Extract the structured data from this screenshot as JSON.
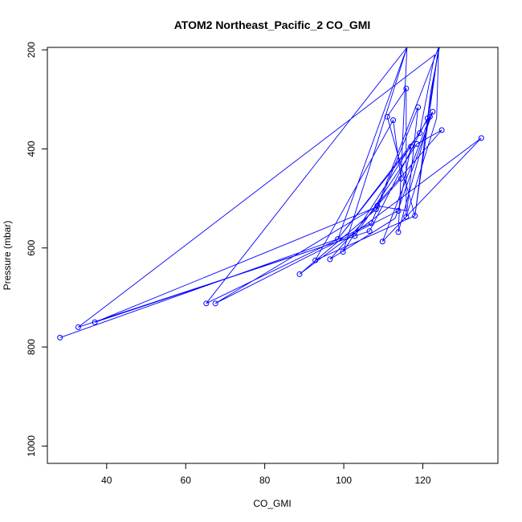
{
  "chart_data": {
    "type": "scatter",
    "title": "ATOM2 Northeast_Pacific_2 CO_GMI",
    "xlabel": "CO_GMI",
    "ylabel": "Pressure (mbar)",
    "xlim": [
      25,
      139
    ],
    "ylim": [
      1035,
      195
    ],
    "y_reversed": true,
    "x_ticks": [
      40,
      60,
      80,
      100,
      120
    ],
    "y_ticks": [
      200,
      400,
      600,
      800,
      1000
    ],
    "grid": false,
    "legend": "none",
    "colors": {
      "series": "#0000ff",
      "axis": "#000000"
    },
    "points": [
      {
        "x": 28.2,
        "y": 781
      },
      {
        "x": 32.8,
        "y": 760
      },
      {
        "x": 37.0,
        "y": 750
      },
      {
        "x": 65.2,
        "y": 712
      },
      {
        "x": 67.5,
        "y": 712
      },
      {
        "x": 88.8,
        "y": 653
      },
      {
        "x": 92.8,
        "y": 625
      },
      {
        "x": 96.5,
        "y": 623
      },
      {
        "x": 99.8,
        "y": 608
      },
      {
        "x": 98.5,
        "y": 582
      },
      {
        "x": 102.8,
        "y": 576
      },
      {
        "x": 106.5,
        "y": 566
      },
      {
        "x": 109.8,
        "y": 587
      },
      {
        "x": 113.8,
        "y": 568
      },
      {
        "x": 107.0,
        "y": 550
      },
      {
        "x": 108.2,
        "y": 522
      },
      {
        "x": 108.5,
        "y": 515
      },
      {
        "x": 113.8,
        "y": 525
      },
      {
        "x": 115.8,
        "y": 537
      },
      {
        "x": 118.0,
        "y": 535
      },
      {
        "x": 114.5,
        "y": 460
      },
      {
        "x": 117.0,
        "y": 395
      },
      {
        "x": 118.5,
        "y": 390
      },
      {
        "x": 119.2,
        "y": 368
      },
      {
        "x": 111.0,
        "y": 335
      },
      {
        "x": 112.5,
        "y": 342
      },
      {
        "x": 115.8,
        "y": 278
      },
      {
        "x": 118.8,
        "y": 316
      },
      {
        "x": 121.2,
        "y": 338
      },
      {
        "x": 121.8,
        "y": 335
      },
      {
        "x": 122.5,
        "y": 325
      },
      {
        "x": 124.8,
        "y": 362
      },
      {
        "x": 134.8,
        "y": 378
      }
    ],
    "line_x": [
      28.2,
      98.5,
      119.2,
      123.0,
      32.8,
      102.8,
      118.5,
      124.8,
      107.5,
      37.0,
      106.5,
      121.2,
      118.0,
      124.0,
      108.2,
      88.8,
      134.8,
      109.8,
      121.8,
      113.8,
      116.0,
      65.2,
      107.0,
      118.8,
      116.0,
      108.5,
      67.5,
      113.8,
      117.0,
      98.5,
      116.0,
      99.8,
      122.5,
      113.0,
      96.5,
      114.5,
      112.5,
      92.8,
      118.0,
      111.0,
      115.8,
      115.8,
      123.5,
      124.0,
      121.2,
      122.0,
      124.2
    ],
    "line_y": [
      781,
      582,
      368,
      210,
      760,
      576,
      390,
      362,
      520,
      750,
      566,
      338,
      535,
      195,
      522,
      653,
      378,
      587,
      335,
      568,
      195,
      712,
      550,
      316,
      525,
      515,
      712,
      525,
      395,
      582,
      195,
      608,
      325,
      540,
      623,
      460,
      342,
      625,
      535,
      335,
      278,
      537,
      338,
      195,
      338,
      285,
      195
    ]
  }
}
